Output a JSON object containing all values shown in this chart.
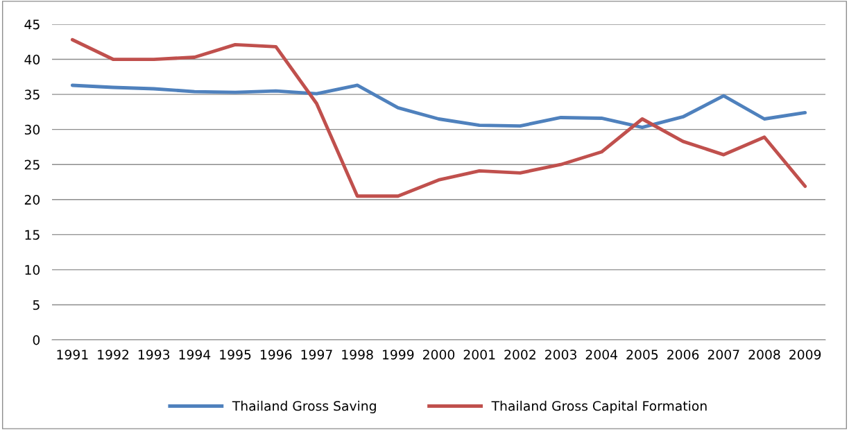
{
  "chart_data": {
    "type": "line",
    "categories": [
      "1991",
      "1992",
      "1993",
      "1994",
      "1995",
      "1996",
      "1997",
      "1998",
      "1999",
      "2000",
      "2001",
      "2002",
      "2003",
      "2004",
      "2005",
      "2006",
      "2007",
      "2008",
      "2009"
    ],
    "series": [
      {
        "name": "Thailand Gross Saving",
        "color": "#4f81bd",
        "values": [
          36.3,
          36.0,
          35.8,
          35.4,
          35.3,
          35.5,
          35.1,
          36.3,
          33.1,
          31.5,
          30.6,
          30.5,
          31.7,
          31.6,
          30.3,
          31.8,
          34.8,
          31.5,
          32.4
        ]
      },
      {
        "name": "Thailand Gross Capital Formation",
        "color": "#c0504d",
        "values": [
          42.8,
          40.0,
          40.0,
          40.3,
          42.1,
          41.8,
          33.7,
          20.5,
          20.5,
          22.8,
          24.1,
          23.8,
          25.0,
          26.8,
          31.5,
          28.3,
          26.4,
          28.9,
          21.9
        ]
      }
    ],
    "ylim": [
      0,
      45
    ],
    "yticks": [
      0,
      5,
      10,
      15,
      20,
      25,
      30,
      35,
      40,
      45
    ],
    "grid": "y",
    "legend": "bottom",
    "marker": "none",
    "line_style": "solid"
  }
}
